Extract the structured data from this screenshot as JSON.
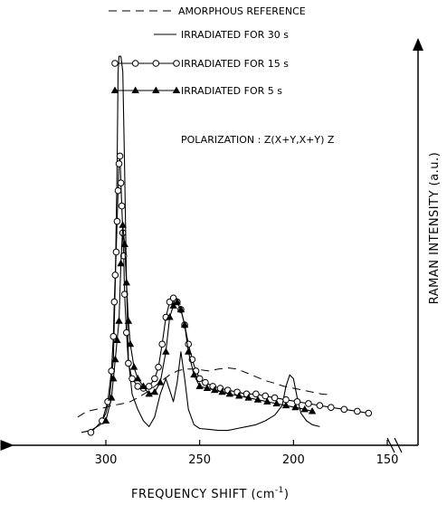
{
  "chart_data": {
    "type": "line",
    "xlabel": "FREQUENCY SHIFT (cm",
    "xlabel_sup": "-1",
    "xlabel_close": ")",
    "ylabel": "RAMAN INTENSITY (a.u.)",
    "annotation": "POLARIZATION : Z(X+Y,X+Y) Z",
    "xlim": [
      318,
      143
    ],
    "ylim": [
      0,
      100
    ],
    "x_reversed": true,
    "xticks": [
      300,
      250,
      200,
      150
    ],
    "xtick_labels": [
      "300",
      "250",
      "200",
      "150"
    ],
    "grid": false,
    "legend_position": "top",
    "series": [
      {
        "name": "AMORPHOUS REFERENCE",
        "style": "dashed",
        "marker": "none",
        "x": [
          315,
          310,
          305,
          300,
          297,
          293,
          290,
          287,
          283,
          278,
          274,
          270,
          266,
          262,
          258,
          254,
          250,
          245,
          240,
          235,
          230,
          225,
          220,
          215,
          210,
          205,
          200,
          195,
          190,
          185,
          180
        ],
        "y": [
          5,
          6.5,
          7,
          7.5,
          8,
          8.3,
          8.6,
          9,
          10,
          11.5,
          13,
          14.5,
          16,
          17,
          17.5,
          17.5,
          17.3,
          17,
          17.5,
          17.8,
          17.5,
          16.5,
          15.5,
          14.5,
          13.8,
          13,
          12.5,
          12,
          11.5,
          11,
          10.8
        ]
      },
      {
        "name": "IRRADIATED FOR 30 s",
        "style": "solid",
        "marker": "none",
        "x": [
          313,
          308,
          303,
          300,
          298,
          296,
          295,
          294,
          293.5,
          293,
          292,
          291,
          290,
          289,
          288,
          286,
          283,
          280,
          277,
          274,
          271,
          268,
          266,
          264,
          262,
          260,
          258,
          256,
          253,
          250,
          245,
          240,
          235,
          230,
          225,
          220,
          215,
          210,
          206,
          204,
          202,
          200,
          198,
          196,
          193,
          190,
          186
        ],
        "y": [
          1,
          1.5,
          3,
          6,
          10,
          20,
          40,
          70,
          95,
          99,
          99,
          95,
          70,
          40,
          20,
          11,
          7,
          4,
          2.5,
          5,
          11,
          15,
          12,
          9,
          14,
          22,
          15,
          7,
          3,
          2,
          1.8,
          1.5,
          1.5,
          2,
          2.5,
          3,
          4,
          5.5,
          8,
          13,
          16,
          15,
          10,
          6,
          4,
          3,
          2.5
        ]
      },
      {
        "name": "IRRADIATED FOR 15 s",
        "style": "solid",
        "marker": "open-circle",
        "x": [
          308,
          302,
          299,
          297,
          296,
          295.5,
          295,
          294.5,
          294,
          293.5,
          293,
          292.5,
          292,
          291.5,
          291,
          290.5,
          290,
          289,
          288,
          286,
          283,
          280,
          277,
          274,
          272,
          270,
          268,
          266,
          264,
          262,
          260,
          258,
          256,
          254,
          252,
          250,
          247,
          243,
          239,
          235,
          230,
          225,
          220,
          215,
          210,
          204,
          198,
          192,
          186,
          180,
          173,
          166,
          160
        ],
        "y": [
          1,
          4,
          9,
          17,
          26,
          35,
          42,
          48,
          56,
          64,
          71,
          73,
          66,
          60,
          53,
          47,
          37,
          27,
          19,
          15,
          13,
          12.5,
          13,
          15,
          18,
          24,
          31,
          35,
          36,
          35,
          33,
          29,
          24,
          20,
          17,
          15,
          14,
          13,
          12.5,
          12,
          11.5,
          11,
          11,
          10.5,
          10,
          9.5,
          9,
          8.5,
          8,
          7.5,
          7,
          6.5,
          6
        ]
      },
      {
        "name": "IRRADIATED FOR  5 s",
        "style": "solid",
        "marker": "filled-triangle",
        "x": [
          300,
          297,
          296,
          295,
          294,
          293,
          292,
          291,
          290,
          289,
          288,
          287,
          285,
          283,
          280,
          277,
          274,
          271,
          268,
          266,
          264,
          262,
          260,
          258,
          256,
          253,
          250,
          246,
          242,
          238,
          234,
          229,
          224,
          219,
          214,
          209,
          204,
          199,
          194,
          190
        ],
        "y": [
          4,
          10,
          15,
          20,
          25,
          30,
          45,
          55,
          50,
          40,
          30,
          24,
          18,
          15,
          13,
          11,
          11.5,
          14,
          22,
          31,
          34,
          35,
          33,
          29,
          22,
          16,
          13,
          12.5,
          12,
          11.5,
          11,
          10.5,
          10,
          9.5,
          9,
          8.5,
          8,
          7.5,
          7,
          6.5
        ]
      }
    ]
  }
}
